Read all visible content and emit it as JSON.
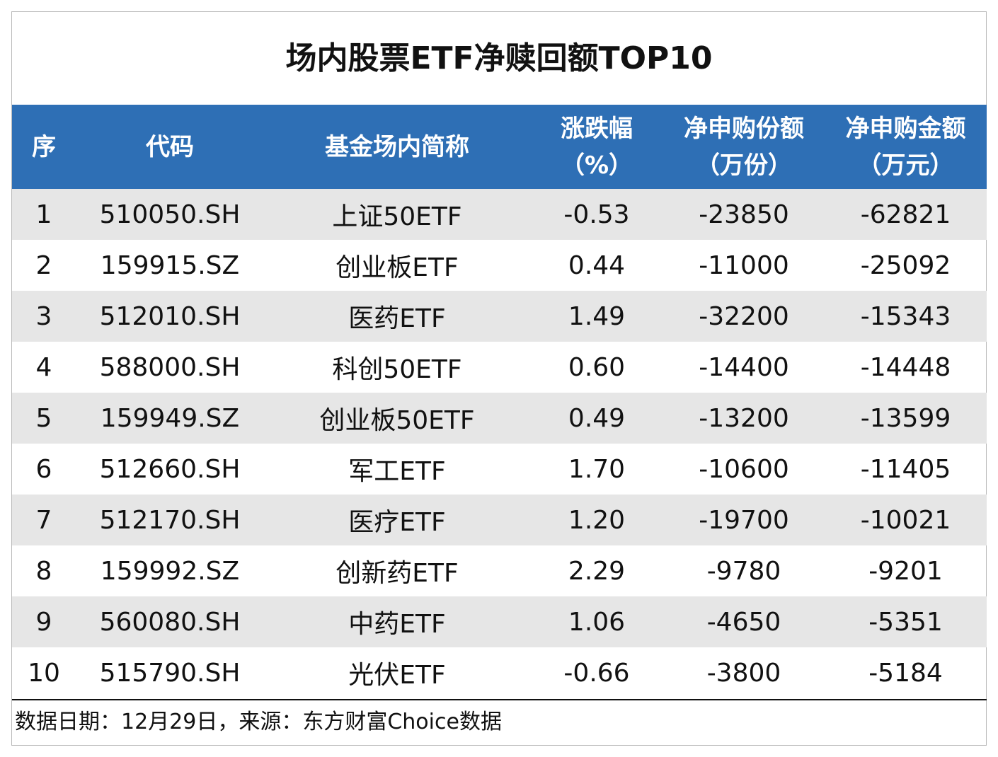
{
  "title": "场内股票ETF净赎回额TOP10",
  "table": {
    "header": [
      [
        "序"
      ],
      [
        "代码"
      ],
      [
        "基金场内简称"
      ],
      [
        "涨跌幅",
        "（%）"
      ],
      [
        "净申购份额",
        "（万份）"
      ],
      [
        "净申购金额",
        "（万元）"
      ]
    ],
    "rows": [
      [
        "1",
        "510050.SH",
        "上证50ETF",
        "-0.53",
        "-23850",
        "-62821"
      ],
      [
        "2",
        "159915.SZ",
        "创业板ETF",
        "0.44",
        "-11000",
        "-25092"
      ],
      [
        "3",
        "512010.SH",
        "医药ETF",
        "1.49",
        "-32200",
        "-15343"
      ],
      [
        "4",
        "588000.SH",
        "科创50ETF",
        "0.60",
        "-14400",
        "-14448"
      ],
      [
        "5",
        "159949.SZ",
        "创业板50ETF",
        "0.49",
        "-13200",
        "-13599"
      ],
      [
        "6",
        "512660.SH",
        "军工ETF",
        "1.70",
        "-10600",
        "-11405"
      ],
      [
        "7",
        "512170.SH",
        "医疗ETF",
        "1.20",
        "-19700",
        "-10021"
      ],
      [
        "8",
        "159992.SZ",
        "创新药ETF",
        "2.29",
        "-9780",
        "-9201"
      ],
      [
        "9",
        "560080.SH",
        "中药ETF",
        "1.06",
        "-4650",
        "-5351"
      ],
      [
        "10",
        "515790.SH",
        "光伏ETF",
        "-0.66",
        "-3800",
        "-5184"
      ]
    ]
  },
  "footer": "数据日期：12月29日，来源：东方财富Choice数据"
}
